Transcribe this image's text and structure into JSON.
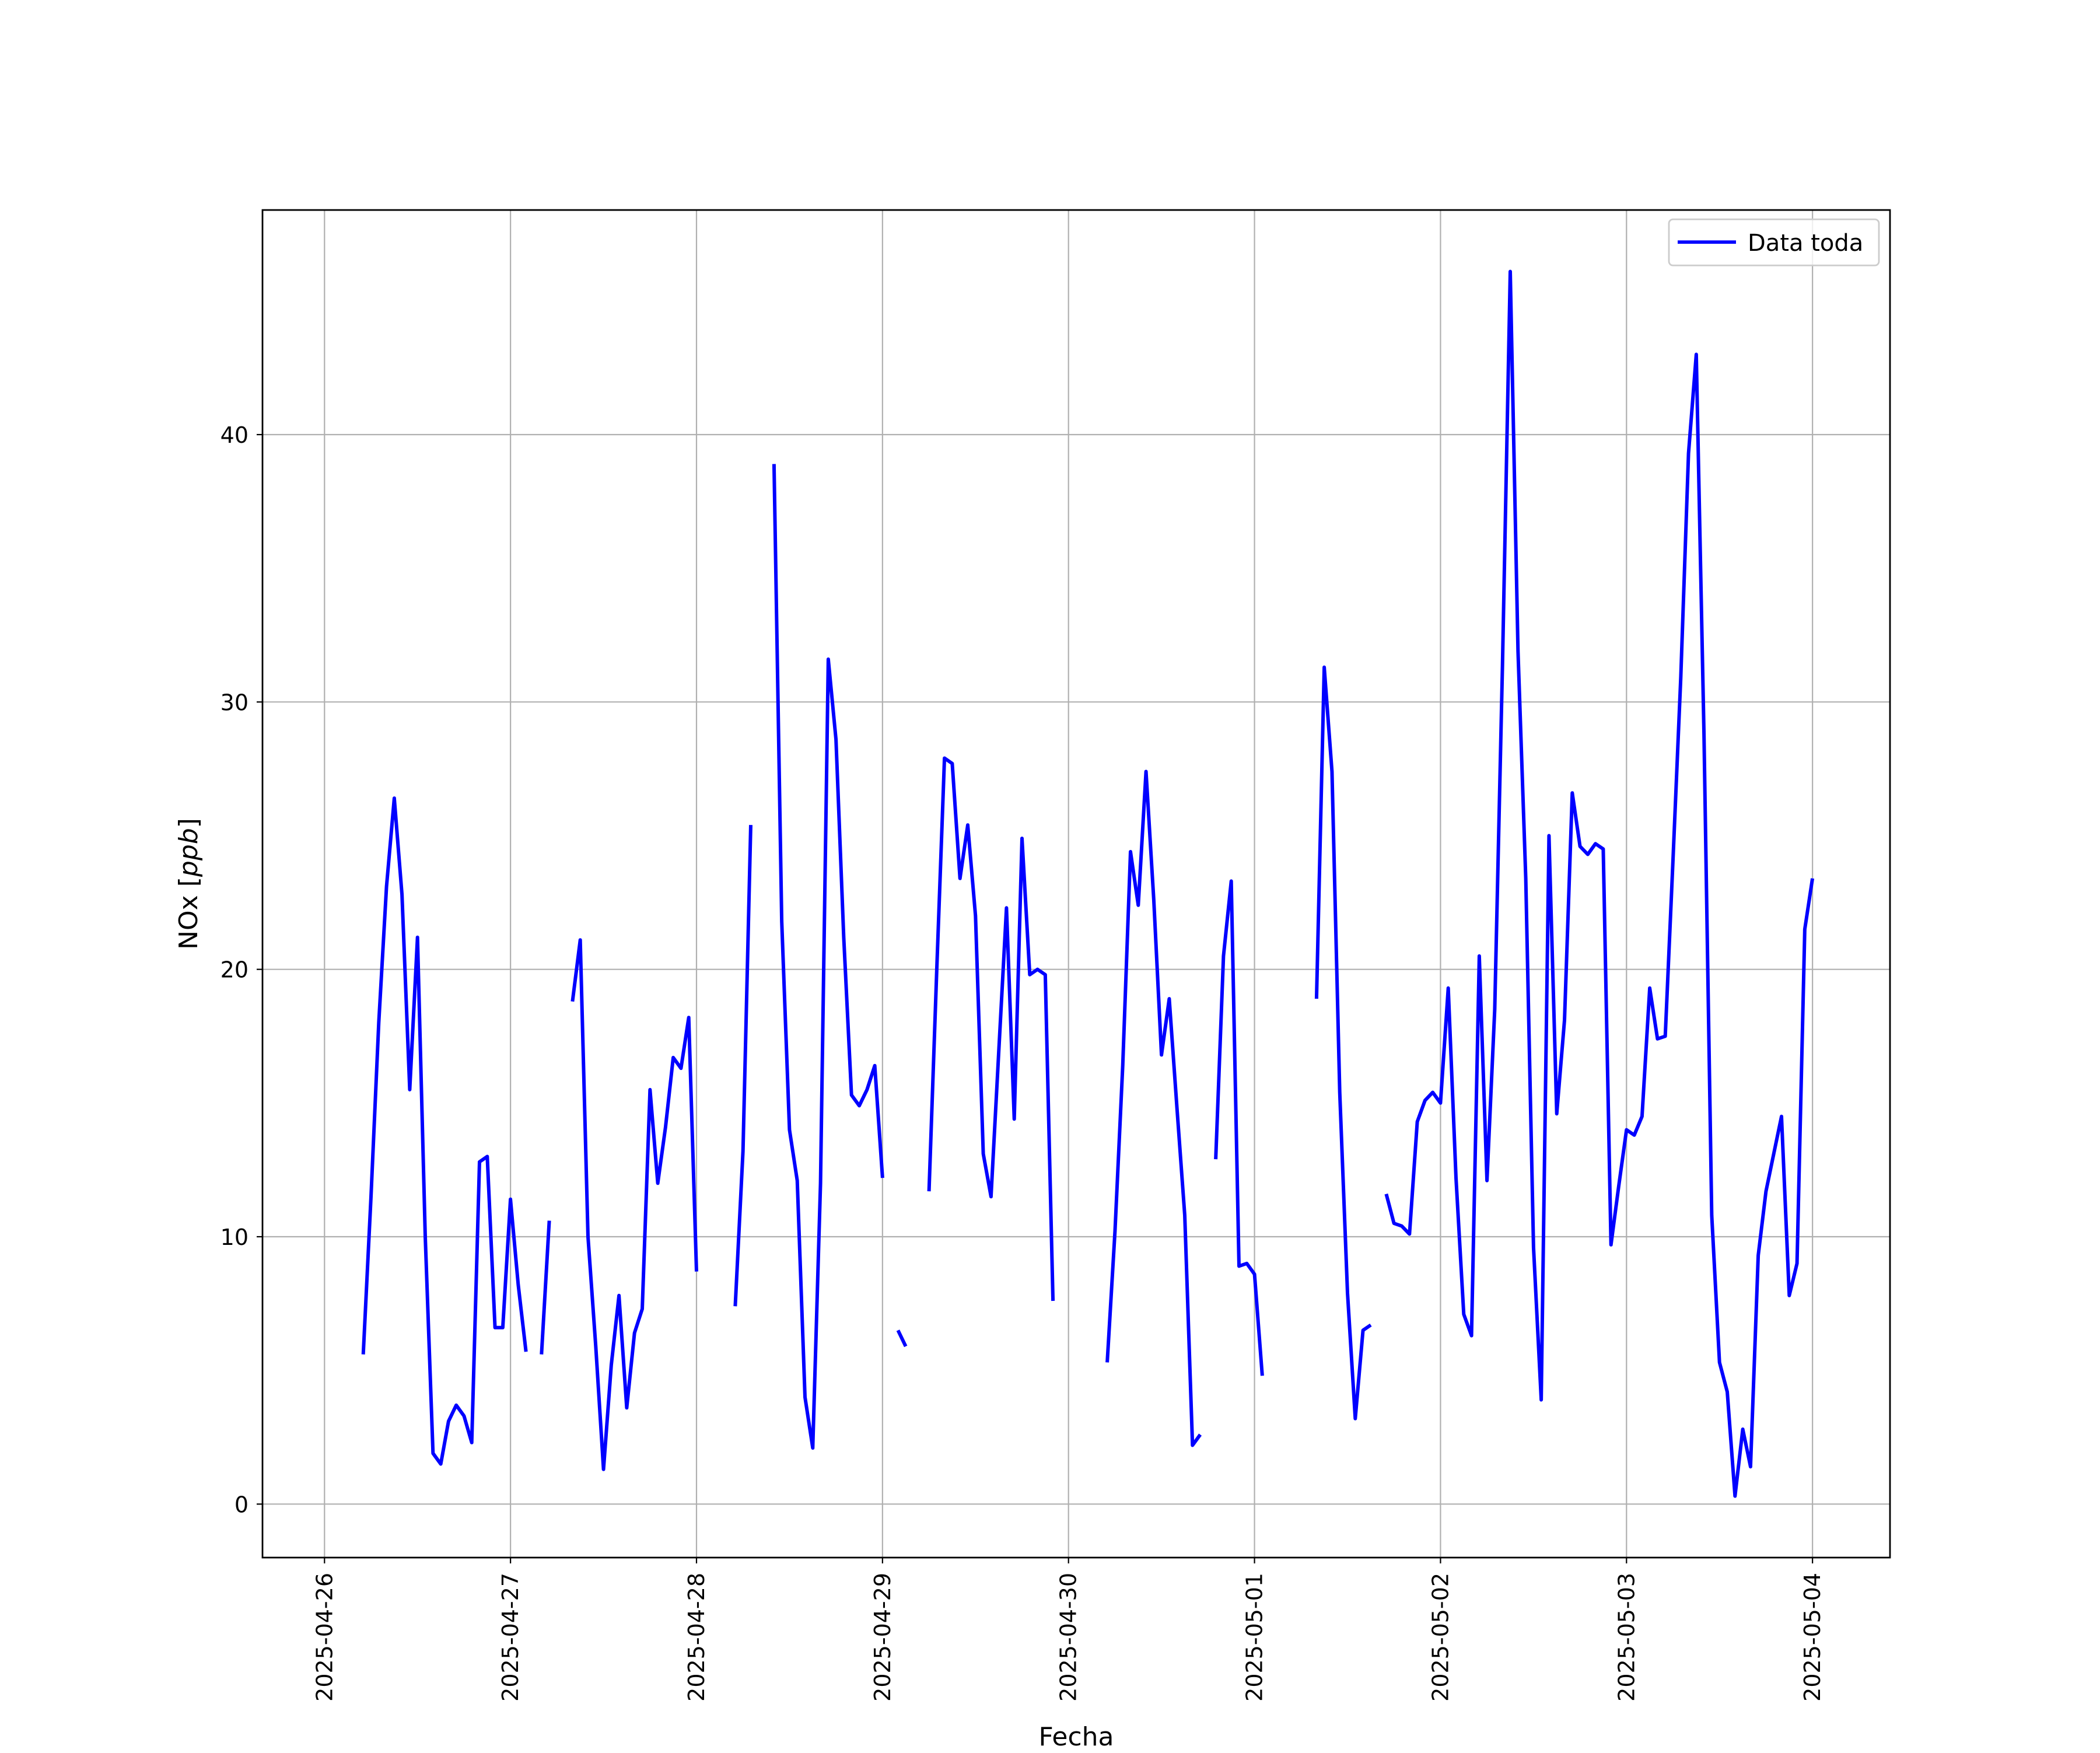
{
  "chart_data": {
    "type": "line",
    "title": "",
    "xlabel": "Fecha",
    "ylabel": "NOx [ppb]",
    "ylabel_plain": "NOx [",
    "ylabel_italic": "ppb",
    "ylabel_close": "]",
    "xlim": [
      "2025-04-25T16:00",
      "2025-05-04T10:00"
    ],
    "ylim": [
      -2,
      48.4
    ],
    "x_ticks": [
      "2025-04-26",
      "2025-04-27",
      "2025-04-28",
      "2025-04-29",
      "2025-04-30",
      "2025-05-01",
      "2025-05-02",
      "2025-05-03",
      "2025-05-04"
    ],
    "y_ticks": [
      0,
      10,
      20,
      30,
      40
    ],
    "grid": true,
    "legend_position": "upper right",
    "series": [
      {
        "name": "Data toda",
        "color": "#0000ff",
        "points": [
          [
            "2025-04-26T05:00",
            5.6
          ],
          [
            "2025-04-26T06:00",
            11.5
          ],
          [
            "2025-04-26T07:00",
            18.0
          ],
          [
            "2025-04-26T08:00",
            23.1
          ],
          [
            "2025-04-26T09:00",
            26.4
          ],
          [
            "2025-04-26T10:00",
            22.8
          ],
          [
            "2025-04-26T11:00",
            15.5
          ],
          [
            "2025-04-26T12:00",
            21.2
          ],
          [
            "2025-04-26T13:00",
            10.0
          ],
          [
            "2025-04-26T14:00",
            1.9
          ],
          [
            "2025-04-26T15:00",
            1.5
          ],
          [
            "2025-04-26T16:00",
            3.1
          ],
          [
            "2025-04-26T17:00",
            3.7
          ],
          [
            "2025-04-26T18:00",
            3.3
          ],
          [
            "2025-04-26T19:00",
            2.3
          ],
          [
            "2025-04-26T20:00",
            12.8
          ],
          [
            "2025-04-26T21:00",
            13.0
          ],
          [
            "2025-04-26T22:00",
            6.6
          ],
          [
            "2025-04-26T23:00",
            6.6
          ],
          [
            "2025-04-27T00:00",
            11.4
          ],
          [
            "2025-04-27T01:00",
            8.2
          ],
          [
            "2025-04-27T02:00",
            5.7
          ],
          [
            "2025-04-27T03:00",
            null
          ],
          [
            "2025-04-27T04:00",
            5.6
          ],
          [
            "2025-04-27T05:00",
            10.6
          ],
          [
            "2025-04-27T06:00",
            null
          ],
          [
            "2025-04-27T08:00",
            18.8
          ],
          [
            "2025-04-27T09:00",
            21.1
          ],
          [
            "2025-04-27T10:00",
            10.0
          ],
          [
            "2025-04-27T11:00",
            5.9
          ],
          [
            "2025-04-27T12:00",
            1.3
          ],
          [
            "2025-04-27T13:00",
            5.2
          ],
          [
            "2025-04-27T14:00",
            7.8
          ],
          [
            "2025-04-27T15:00",
            3.6
          ],
          [
            "2025-04-27T16:00",
            6.4
          ],
          [
            "2025-04-27T17:00",
            7.3
          ],
          [
            "2025-04-27T18:00",
            15.5
          ],
          [
            "2025-04-27T19:00",
            12.0
          ],
          [
            "2025-04-27T20:00",
            14.1
          ],
          [
            "2025-04-27T21:00",
            16.7
          ],
          [
            "2025-04-27T22:00",
            16.3
          ],
          [
            "2025-04-27T23:00",
            18.2
          ],
          [
            "2025-04-28T00:00",
            8.7
          ],
          [
            "2025-04-28T01:00",
            null
          ],
          [
            "2025-04-28T05:00",
            7.4
          ],
          [
            "2025-04-28T06:00",
            13.2
          ],
          [
            "2025-04-28T07:00",
            25.4
          ],
          [
            "2025-04-28T08:00",
            null
          ],
          [
            "2025-04-28T10:00",
            38.9
          ],
          [
            "2025-04-28T11:00",
            21.8
          ],
          [
            "2025-04-28T12:00",
            14.0
          ],
          [
            "2025-04-28T13:00",
            12.1
          ],
          [
            "2025-04-28T14:00",
            4.0
          ],
          [
            "2025-04-28T15:00",
            2.1
          ],
          [
            "2025-04-28T16:00",
            12.0
          ],
          [
            "2025-04-28T17:00",
            31.6
          ],
          [
            "2025-04-28T18:00",
            28.6
          ],
          [
            "2025-04-28T19:00",
            21.2
          ],
          [
            "2025-04-28T20:00",
            15.3
          ],
          [
            "2025-04-28T21:00",
            14.9
          ],
          [
            "2025-04-28T22:00",
            15.5
          ],
          [
            "2025-04-28T23:00",
            16.4
          ],
          [
            "2025-04-29T00:00",
            12.2
          ],
          [
            "2025-04-29T01:00",
            null
          ],
          [
            "2025-04-29T02:00",
            6.5
          ],
          [
            "2025-04-29T03:00",
            5.9
          ],
          [
            "2025-04-29T04:00",
            null
          ],
          [
            "2025-04-29T06:00",
            11.7
          ],
          [
            "2025-04-29T07:00",
            20.0
          ],
          [
            "2025-04-29T08:00",
            27.9
          ],
          [
            "2025-04-29T09:00",
            27.7
          ],
          [
            "2025-04-29T10:00",
            23.4
          ],
          [
            "2025-04-29T11:00",
            25.4
          ],
          [
            "2025-04-29T12:00",
            22.0
          ],
          [
            "2025-04-29T13:00",
            13.1
          ],
          [
            "2025-04-29T14:00",
            11.5
          ],
          [
            "2025-04-29T15:00",
            16.9
          ],
          [
            "2025-04-29T16:00",
            22.3
          ],
          [
            "2025-04-29T17:00",
            14.4
          ],
          [
            "2025-04-29T18:00",
            24.9
          ],
          [
            "2025-04-29T19:00",
            19.8
          ],
          [
            "2025-04-29T20:00",
            20.0
          ],
          [
            "2025-04-29T21:00",
            19.8
          ],
          [
            "2025-04-29T22:00",
            7.6
          ],
          [
            "2025-04-29T23:00",
            null
          ],
          [
            "2025-04-30T05:00",
            5.3
          ],
          [
            "2025-04-30T06:00",
            10.2
          ],
          [
            "2025-04-30T07:00",
            16.4
          ],
          [
            "2025-04-30T08:00",
            24.4
          ],
          [
            "2025-04-30T09:00",
            22.4
          ],
          [
            "2025-04-30T10:00",
            27.4
          ],
          [
            "2025-04-30T11:00",
            22.6
          ],
          [
            "2025-04-30T12:00",
            16.8
          ],
          [
            "2025-04-30T13:00",
            18.9
          ],
          [
            "2025-04-30T14:00",
            14.8
          ],
          [
            "2025-04-30T15:00",
            10.8
          ],
          [
            "2025-04-30T16:00",
            2.2
          ],
          [
            "2025-04-30T17:00",
            2.6
          ],
          [
            "2025-04-30T18:00",
            null
          ],
          [
            "2025-04-30T19:00",
            12.9
          ],
          [
            "2025-04-30T20:00",
            20.5
          ],
          [
            "2025-04-30T21:00",
            23.3
          ],
          [
            "2025-04-30T22:00",
            8.9
          ],
          [
            "2025-04-30T23:00",
            9.0
          ],
          [
            "2025-05-01T00:00",
            8.6
          ],
          [
            "2025-05-01T01:00",
            4.8
          ],
          [
            "2025-05-01T02:00",
            null
          ],
          [
            "2025-05-01T08:00",
            18.9
          ],
          [
            "2025-05-01T09:00",
            31.3
          ],
          [
            "2025-05-01T10:00",
            27.4
          ],
          [
            "2025-05-01T11:00",
            15.4
          ],
          [
            "2025-05-01T12:00",
            7.9
          ],
          [
            "2025-05-01T13:00",
            3.2
          ],
          [
            "2025-05-01T14:00",
            6.5
          ],
          [
            "2025-05-01T15:00",
            6.7
          ],
          [
            "2025-05-01T16:00",
            null
          ],
          [
            "2025-05-01T17:00",
            11.6
          ],
          [
            "2025-05-01T18:00",
            10.5
          ],
          [
            "2025-05-01T19:00",
            10.4
          ],
          [
            "2025-05-01T20:00",
            10.1
          ],
          [
            "2025-05-01T21:00",
            14.3
          ],
          [
            "2025-05-01T22:00",
            15.1
          ],
          [
            "2025-05-01T23:00",
            15.4
          ],
          [
            "2025-05-02T00:00",
            15.0
          ],
          [
            "2025-05-02T01:00",
            19.3
          ],
          [
            "2025-05-02T02:00",
            12.2
          ],
          [
            "2025-05-02T03:00",
            7.1
          ],
          [
            "2025-05-02T04:00",
            6.3
          ],
          [
            "2025-05-02T05:00",
            20.5
          ],
          [
            "2025-05-02T06:00",
            12.1
          ],
          [
            "2025-05-02T07:00",
            18.5
          ],
          [
            "2025-05-02T08:00",
            31.4
          ],
          [
            "2025-05-02T09:00",
            46.1
          ],
          [
            "2025-05-02T10:00",
            31.9
          ],
          [
            "2025-05-02T11:00",
            23.4
          ],
          [
            "2025-05-02T12:00",
            9.6
          ],
          [
            "2025-05-02T13:00",
            3.9
          ],
          [
            "2025-05-02T14:00",
            25.0
          ],
          [
            "2025-05-02T15:00",
            14.6
          ],
          [
            "2025-05-02T16:00",
            18.1
          ],
          [
            "2025-05-02T17:00",
            26.6
          ],
          [
            "2025-05-02T18:00",
            24.6
          ],
          [
            "2025-05-02T19:00",
            24.3
          ],
          [
            "2025-05-02T20:00",
            24.7
          ],
          [
            "2025-05-02T21:00",
            24.5
          ],
          [
            "2025-05-02T22:00",
            9.7
          ],
          [
            "2025-05-02T23:00",
            11.9
          ],
          [
            "2025-05-03T00:00",
            14.0
          ],
          [
            "2025-05-03T01:00",
            13.8
          ],
          [
            "2025-05-03T02:00",
            14.5
          ],
          [
            "2025-05-03T03:00",
            19.3
          ],
          [
            "2025-05-03T04:00",
            17.4
          ],
          [
            "2025-05-03T05:00",
            17.5
          ],
          [
            "2025-05-03T06:00",
            24.1
          ],
          [
            "2025-05-03T07:00",
            30.9
          ],
          [
            "2025-05-03T08:00",
            39.3
          ],
          [
            "2025-05-03T09:00",
            43.0
          ],
          [
            "2025-05-03T10:00",
            28.8
          ],
          [
            "2025-05-03T11:00",
            10.8
          ],
          [
            "2025-05-03T12:00",
            5.3
          ],
          [
            "2025-05-03T13:00",
            4.2
          ],
          [
            "2025-05-03T14:00",
            0.3
          ],
          [
            "2025-05-03T15:00",
            2.8
          ],
          [
            "2025-05-03T16:00",
            1.4
          ],
          [
            "2025-05-03T17:00",
            9.3
          ],
          [
            "2025-05-03T18:00",
            11.7
          ],
          [
            "2025-05-03T19:00",
            13.1
          ],
          [
            "2025-05-03T20:00",
            14.5
          ],
          [
            "2025-05-03T21:00",
            7.8
          ],
          [
            "2025-05-03T22:00",
            9.0
          ],
          [
            "2025-05-03T23:00",
            21.5
          ],
          [
            "2025-05-04T00:00",
            23.4
          ]
        ]
      }
    ]
  }
}
